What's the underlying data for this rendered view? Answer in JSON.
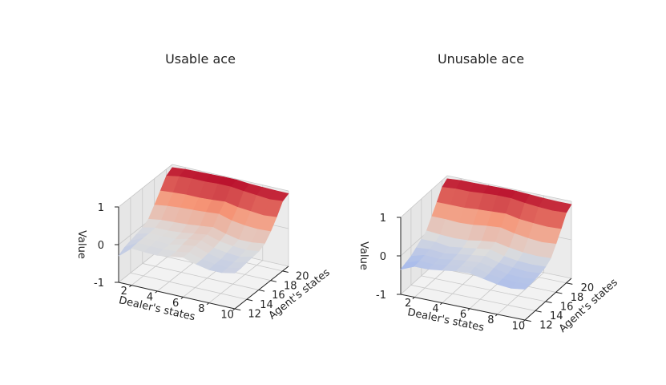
{
  "chart_data": [
    {
      "type": "surface",
      "title": "Usable ace",
      "xlabel": "Dealer's states",
      "ylabel": "Agent's states",
      "zlabel": "Value",
      "x": [
        1,
        2,
        3,
        4,
        5,
        6,
        7,
        8,
        9,
        10
      ],
      "y": [
        12,
        13,
        14,
        15,
        16,
        17,
        18,
        19,
        20,
        21
      ],
      "x_ticks": [
        "2",
        "4",
        "6",
        "8",
        "10"
      ],
      "y_ticks": [
        "12",
        "14",
        "16",
        "18",
        "20"
      ],
      "z_ticks": [
        "-1",
        "0",
        "1"
      ],
      "zlim": [
        -1,
        1
      ],
      "colormap": "coolwarm",
      "grid": true,
      "values": [
        [
          -0.3,
          -0.2,
          -0.15,
          -0.1,
          -0.05,
          0.05,
          0.3,
          0.55,
          0.82,
          0.92
        ],
        [
          -0.02,
          0.0,
          0.0,
          0.0,
          0.02,
          0.1,
          0.35,
          0.58,
          0.88,
          0.95
        ],
        [
          -0.04,
          -0.02,
          0.0,
          0.0,
          0.02,
          0.12,
          0.38,
          0.6,
          0.9,
          0.96
        ],
        [
          -0.05,
          -0.02,
          -0.02,
          0.0,
          0.05,
          0.14,
          0.4,
          0.6,
          0.9,
          0.97
        ],
        [
          0.0,
          0.0,
          0.05,
          0.08,
          0.1,
          0.18,
          0.42,
          0.62,
          0.92,
          0.98
        ],
        [
          0.05,
          0.05,
          0.1,
          0.12,
          0.15,
          0.22,
          0.45,
          0.65,
          0.92,
          0.98
        ],
        [
          -0.05,
          -0.05,
          -0.02,
          0.0,
          0.05,
          0.12,
          0.35,
          0.58,
          0.88,
          0.95
        ],
        [
          -0.12,
          -0.1,
          -0.1,
          -0.05,
          0.0,
          0.05,
          0.3,
          0.55,
          0.85,
          0.94
        ],
        [
          -0.12,
          -0.12,
          -0.1,
          -0.08,
          -0.02,
          0.05,
          0.28,
          0.52,
          0.82,
          0.93
        ],
        [
          -0.05,
          -0.05,
          -0.02,
          0.0,
          0.02,
          0.1,
          0.3,
          0.55,
          0.85,
          0.93
        ]
      ]
    },
    {
      "type": "surface",
      "title": "Unusable ace",
      "xlabel": "Dealer's states",
      "ylabel": "Agent's states",
      "zlabel": "Value",
      "x": [
        1,
        2,
        3,
        4,
        5,
        6,
        7,
        8,
        9,
        10
      ],
      "y": [
        12,
        13,
        14,
        15,
        16,
        17,
        18,
        19,
        20,
        21
      ],
      "x_ticks": [
        "2",
        "4",
        "6",
        "8",
        "10"
      ],
      "y_ticks": [
        "12",
        "14",
        "16",
        "18",
        "20"
      ],
      "z_ticks": [
        "-1",
        "0",
        "1"
      ],
      "zlim": [
        -1,
        1
      ],
      "colormap": "coolwarm",
      "grid": true,
      "values": [
        [
          -0.35,
          -0.3,
          -0.25,
          -0.15,
          -0.05,
          0.05,
          0.3,
          0.55,
          0.82,
          0.92
        ],
        [
          -0.2,
          -0.18,
          -0.15,
          -0.12,
          -0.05,
          0.02,
          0.3,
          0.55,
          0.85,
          0.95
        ],
        [
          -0.2,
          -0.2,
          -0.18,
          -0.15,
          -0.1,
          0.0,
          0.28,
          0.55,
          0.85,
          0.95
        ],
        [
          -0.15,
          -0.15,
          -0.12,
          -0.1,
          -0.05,
          0.02,
          0.3,
          0.58,
          0.88,
          0.96
        ],
        [
          -0.1,
          -0.1,
          -0.08,
          -0.05,
          0.0,
          0.08,
          0.35,
          0.6,
          0.9,
          0.97
        ],
        [
          -0.08,
          -0.05,
          -0.05,
          0.0,
          0.05,
          0.12,
          0.38,
          0.62,
          0.9,
          0.97
        ],
        [
          -0.15,
          -0.15,
          -0.12,
          -0.1,
          -0.05,
          0.05,
          0.3,
          0.55,
          0.85,
          0.95
        ],
        [
          -0.22,
          -0.2,
          -0.2,
          -0.15,
          -0.1,
          0.0,
          0.25,
          0.52,
          0.82,
          0.93
        ],
        [
          -0.25,
          -0.22,
          -0.22,
          -0.18,
          -0.12,
          -0.02,
          0.22,
          0.5,
          0.8,
          0.92
        ],
        [
          -0.2,
          -0.2,
          -0.18,
          -0.15,
          -0.1,
          0.0,
          0.25,
          0.52,
          0.82,
          0.92
        ]
      ]
    }
  ]
}
